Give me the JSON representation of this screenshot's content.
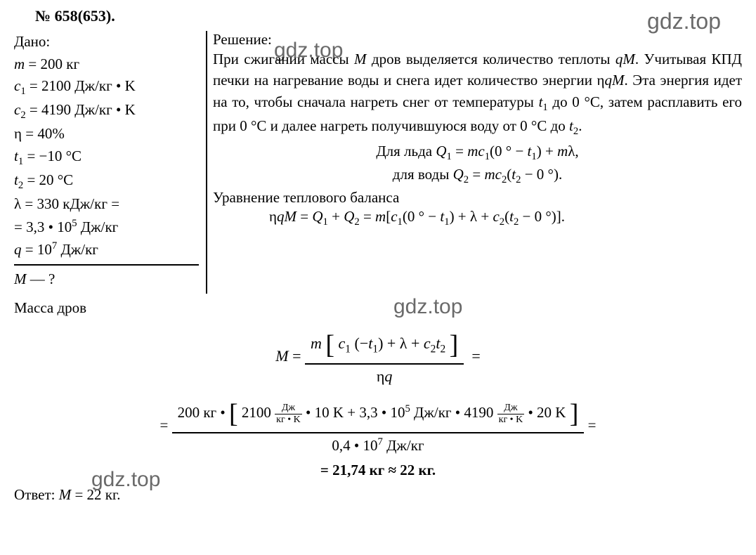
{
  "problem_number": "№ 658(653).",
  "watermark_text": "gdz.top",
  "given": {
    "heading": "Дано:",
    "lines": {
      "m": "m = 200 кг",
      "c1": "c₁ = 2100 Дж/кг • K",
      "c2": "c₂ = 4190 Дж/кг • K",
      "eta": "η = 40%",
      "t1": "t₁ = −10 °C",
      "t2": "t₂ = 20 °C",
      "lambda1": "λ = 330 кДж/кг =",
      "lambda2": "= 3,3 • 10⁵ Дж/кг",
      "q": "q = 10⁷ Дж/кг"
    },
    "find": "M — ?"
  },
  "solution": {
    "heading": "Решение:",
    "paragraph": "При сжигании массы M дров выделяется количество теплоты qM. Учитывая КПД печки на нагревание воды и снега идет количество энергии ηqM. Эта энергия идет на то, чтобы сначала нагреть снег от температуры t₁ до 0 °C, затем расплавить его при 0 °C и далее нагреть получившуюся воду от 0 °C до t₂.",
    "ice_formula": "Для льда Q₁ = mc₁(0 ° − t₁) + mλ,",
    "water_formula": "для воды Q₂ = mc₂(t₂ − 0 °).",
    "balance_label": "Уравнение теплового баланса",
    "balance_eq": "ηqM = Q₁ + Q₂ = m[c₁(0 ° − t₁) + λ + c₂(t₂ − 0 °)].",
    "mass_label": "Масса дров"
  },
  "main_formula": {
    "lhs": "M",
    "numerator": "m [ c₁ (−t₁) + λ + c₂t₂ ]",
    "denominator": "ηq",
    "equals_after": "="
  },
  "numeric": {
    "prefix": "=",
    "num_part1": "200 кг •",
    "num_part2": "2100",
    "num_part3": "• 10 K + 3,3 • 10⁵ Дж/кг • 4190",
    "num_part4": "• 20 K",
    "unit_frac_num": "Дж",
    "unit_frac_den": "кг • K",
    "denominator": "0,4 • 10⁷ Дж/кг",
    "suffix": "="
  },
  "result": "= 21,74 кг ≈ 22 кг.",
  "answer": {
    "label": "Ответ:",
    "value": "M = 22 кг."
  },
  "colors": {
    "text": "#000000",
    "background": "#ffffff",
    "watermark": "#6a6a6a"
  },
  "fonts": {
    "body_family": "Times New Roman",
    "body_size_pt": 16,
    "watermark_family": "Arial",
    "watermark_size_pt": 22
  }
}
